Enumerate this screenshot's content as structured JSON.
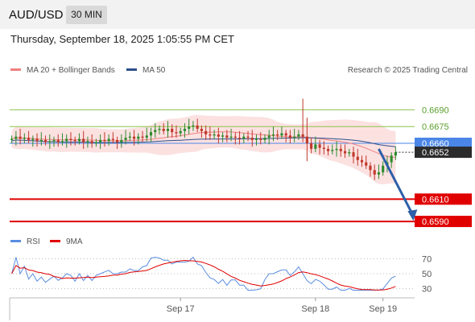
{
  "header": {
    "symbol": "AUD/USD",
    "timeframe": "30 MIN"
  },
  "datetime": "Thursday, September 18, 2025 1:05:55 PM CET",
  "chart_data": {
    "type": "candlestick",
    "legend": [
      {
        "label": "MA 20 + Bollinger Bands",
        "color": "#f08080"
      },
      {
        "label": "MA 50",
        "color": "#2c4f8c"
      }
    ],
    "credit": "Research © 2025 Trading Central",
    "levels": [
      {
        "value": 0.669,
        "label": "0.6690",
        "kind": "resistance",
        "color": "#8bc34a"
      },
      {
        "value": 0.6675,
        "label": "0.6675",
        "kind": "resistance",
        "color": "#8bc34a"
      },
      {
        "value": 0.666,
        "label": "0.6660",
        "kind": "pivot",
        "color": "#4a86e8"
      },
      {
        "value": 0.661,
        "label": "0.6610",
        "kind": "support",
        "color": "#e00000"
      },
      {
        "value": 0.659,
        "label": "0.6590",
        "kind": "target",
        "color": "#e00000"
      }
    ],
    "last_price": {
      "value": 0.6652,
      "label": "0.6652"
    },
    "y_range": [
      0.6585,
      0.6717
    ],
    "x_labels": [
      {
        "label": "Sep 17",
        "index": 40
      },
      {
        "label": "Sep 18",
        "index": 72
      },
      {
        "label": "Sep 19",
        "index": 88
      }
    ],
    "arrow": {
      "from_index": 87,
      "from_value": 0.6655,
      "to_index": 95,
      "to_value": 0.6592
    },
    "rsi": {
      "legend": [
        {
          "label": "RSI",
          "color": "#5a8de0"
        },
        {
          "label": "9MA",
          "color": "#e00000"
        }
      ],
      "levels": [
        {
          "value": 70,
          "label": "70"
        },
        {
          "value": 50,
          "label": "50"
        },
        {
          "value": 30,
          "label": "30"
        }
      ],
      "range": [
        20,
        80
      ]
    },
    "closes": [
      0.6664,
      0.6666,
      0.6664,
      0.6665,
      0.6663,
      0.6664,
      0.6662,
      0.6663,
      0.6661,
      0.6662,
      0.6663,
      0.6661,
      0.6662,
      0.6664,
      0.6663,
      0.6662,
      0.6664,
      0.6661,
      0.6662,
      0.666,
      0.6661,
      0.6663,
      0.6662,
      0.6664,
      0.6663,
      0.6661,
      0.6663,
      0.6665,
      0.6666,
      0.6664,
      0.6666,
      0.6665,
      0.6667,
      0.667,
      0.6672,
      0.6673,
      0.6671,
      0.6673,
      0.667,
      0.6669,
      0.6671,
      0.6673,
      0.6675,
      0.6676,
      0.6673,
      0.6671,
      0.6668,
      0.6667,
      0.6668,
      0.6666,
      0.6667,
      0.6665,
      0.6666,
      0.6665,
      0.6664,
      0.6666,
      0.6665,
      0.6663,
      0.6664,
      0.6663,
      0.6665,
      0.6667,
      0.6668,
      0.6667,
      0.6669,
      0.6667,
      0.6665,
      0.6666,
      0.6668,
      0.6666,
      0.666,
      0.6655,
      0.6659,
      0.6656,
      0.6655,
      0.6653,
      0.6654,
      0.6655,
      0.6653,
      0.6651,
      0.6652,
      0.6648,
      0.6645,
      0.6643,
      0.664,
      0.6636,
      0.6632,
      0.6634,
      0.664,
      0.6643,
      0.6649,
      0.6652
    ]
  }
}
